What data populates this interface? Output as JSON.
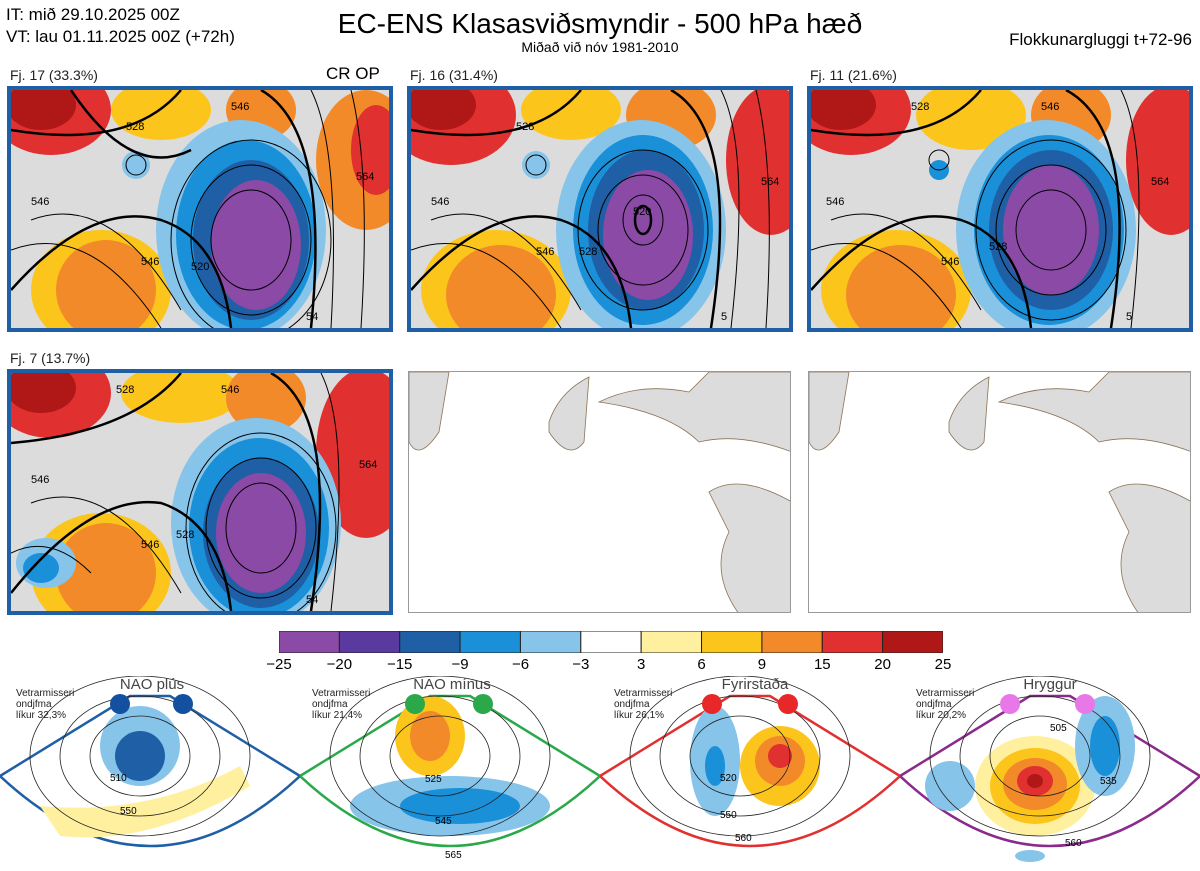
{
  "header": {
    "line1": "IT: mið 29.10.2025 00Z",
    "line2": "VT: lau 01.11.2025 00Z  (+72h)",
    "title": "EC-ENS Klasasviðsmyndir - 500 hPa hæð",
    "subtitle": "Miðað við nóv 1981-2010",
    "right": "Flokkunargluggi t+72-96"
  },
  "panels": [
    {
      "label": "Fj. 17 (33.3%)",
      "extra": "CR OP",
      "contours": [
        "528",
        "546",
        "546",
        "564",
        "520",
        "546",
        "54"
      ]
    },
    {
      "label": "Fj. 16 (31.4%)",
      "contours": [
        "528",
        "546",
        "546",
        "564",
        "520",
        "528",
        "5"
      ]
    },
    {
      "label": "Fj. 11 (21.6%)",
      "contours": [
        "528",
        "546",
        "546",
        "564",
        "528",
        "546",
        "5"
      ]
    },
    {
      "label": "Fj. 7 (13.7%)",
      "contours": [
        "528",
        "546",
        "546",
        "564",
        "528",
        "546",
        "54"
      ]
    }
  ],
  "chart_data": {
    "type": "heatmap",
    "title": "EC-ENS Klasasviðsmyndir - 500 hPa hæð",
    "colorbar": {
      "ticks": [
        "−25",
        "−20",
        "−15",
        "−9",
        "−6",
        "−3",
        "3",
        "6",
        "9",
        "15",
        "20",
        "25"
      ],
      "colors": [
        "#8a4aa6",
        "#5a3a9e",
        "#1f5fa6",
        "#1a90d8",
        "#86c4ea",
        "#ffffff",
        "#fff0a0",
        "#fcc51c",
        "#f28a2a",
        "#e03030",
        "#b01818"
      ]
    },
    "clusters": [
      {
        "name": "Fj. 17",
        "percent": 33.3
      },
      {
        "name": "Fj. 16",
        "percent": 31.4
      },
      {
        "name": "Fj. 11",
        "percent": 21.6
      },
      {
        "name": "Fj. 7",
        "percent": 13.7
      }
    ]
  },
  "regimes": [
    {
      "title": "NAO plús",
      "note": [
        "Vetrarmisseri",
        "ondjfma",
        "líkur 32,3%"
      ],
      "contours": [
        "510",
        "550"
      ],
      "color": "#1f5fa6",
      "dot_color": "#1450a0"
    },
    {
      "title": "NAO mínus",
      "note": [
        "Vetrarmisseri",
        "ondjfma",
        "líkur 21,4%"
      ],
      "contours": [
        "525",
        "545",
        "565"
      ],
      "color": "#2aa84a",
      "dot_color": "#2aa84a"
    },
    {
      "title": "Fyrirstaða",
      "note": [
        "Vetrarmisseri",
        "ondjfma",
        "líkur 26,1%"
      ],
      "contours": [
        "520",
        "550",
        "560"
      ],
      "color": "#e03030",
      "dot_color": "#e82828"
    },
    {
      "title": "Hryggur",
      "note": [
        "Vetrarmisseri",
        "ondjfma",
        "líkur 20,2%"
      ],
      "contours": [
        "505",
        "535",
        "560"
      ],
      "color": "#8a2a8a",
      "dot_color": "#e878e8"
    }
  ]
}
